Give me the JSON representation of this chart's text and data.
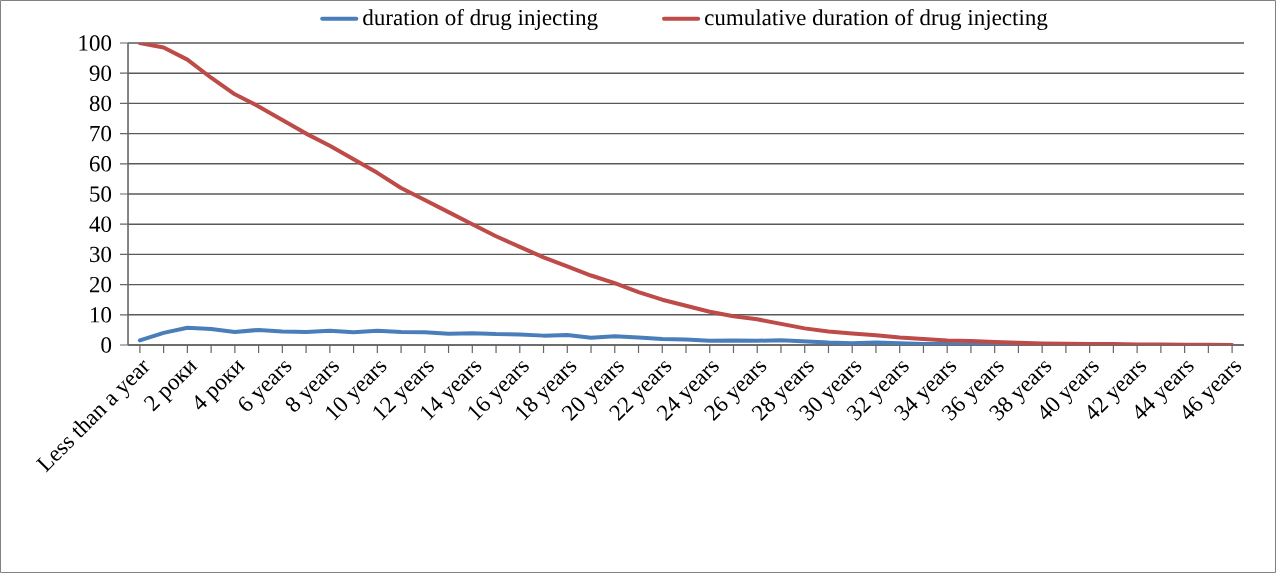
{
  "chart_data": {
    "type": "line",
    "categories": [
      "Less than a year",
      null,
      "2 роки",
      null,
      "4 роки",
      null,
      "6 years",
      null,
      "8 years",
      null,
      "10 years",
      null,
      "12 years",
      null,
      "14 years",
      null,
      "16 years",
      null,
      "18 years",
      null,
      "20 years",
      null,
      "22 years",
      null,
      "24 years",
      null,
      "26 years",
      null,
      "28 years",
      null,
      "30 years",
      null,
      "32 years",
      null,
      "34 years",
      null,
      "36 years",
      null,
      "38 years",
      null,
      "40 years",
      null,
      "42 years",
      null,
      "44 years",
      null,
      "46 years"
    ],
    "series": [
      {
        "name": "duration of drug injecting",
        "color": "#4a7ebb",
        "values": [
          1.5,
          4,
          5.7,
          5.3,
          4.3,
          5,
          4.5,
          4.3,
          4.7,
          4.2,
          4.7,
          4.3,
          4.2,
          3.7,
          3.9,
          3.6,
          3.5,
          3.1,
          3.3,
          2.4,
          2.9,
          2.5,
          2,
          1.8,
          1.4,
          1.5,
          1.4,
          1.6,
          1.2,
          0.8,
          0.6,
          0.8,
          0.6,
          0.3,
          0.3,
          0.2,
          0.2,
          0.1,
          0.1,
          null,
          null,
          null,
          null,
          null,
          null,
          null,
          null
        ]
      },
      {
        "name": "cumulative duration of drug injecting",
        "color": "#be4b48",
        "values": [
          100,
          98.5,
          94.5,
          88.5,
          83,
          79,
          74.5,
          70,
          66,
          61.5,
          57,
          52,
          48,
          44,
          40,
          36,
          32.5,
          29,
          26,
          23,
          20.5,
          17.5,
          15,
          13,
          11,
          9.5,
          8.5,
          7,
          5.5,
          4.5,
          3.8,
          3.2,
          2.5,
          2,
          1.5,
          1.3,
          1,
          0.7,
          0.5,
          0.4,
          0.3,
          0.3,
          0.2,
          0.2,
          0.1,
          0.1,
          0
        ]
      }
    ],
    "ylim": [
      0,
      100
    ],
    "yticks": [
      0,
      10,
      20,
      30,
      40,
      50,
      60,
      70,
      80,
      90,
      100
    ],
    "grid": "y",
    "legend": "top",
    "marker": "none",
    "line_style": "solid"
  }
}
